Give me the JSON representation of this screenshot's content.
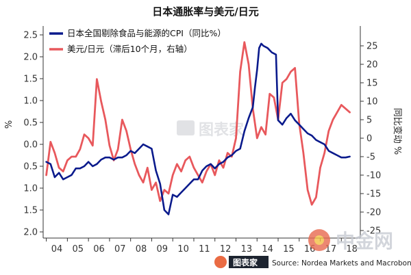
{
  "chart_data": {
    "type": "line",
    "title": "日本通胀率与美元/日元",
    "x_tick_labels": [
      "04",
      "05",
      "06",
      "07",
      "08",
      "09",
      "10",
      "11",
      "12",
      "13",
      "14",
      "15",
      "16",
      "17",
      "18"
    ],
    "x_range": [
      2003.85,
      2018.9
    ],
    "y_left": {
      "label": "%",
      "ticks": [
        "2.5",
        "2.0",
        "1.5",
        "1.0",
        "0.5",
        "0.0",
        "0.5",
        "1.0",
        "1.5",
        "2.0"
      ],
      "tick_values": [
        2.5,
        2.0,
        1.5,
        1.0,
        0.5,
        0.0,
        -0.5,
        -1.0,
        -1.5,
        -2.0
      ],
      "range": [
        -2.0,
        2.5
      ]
    },
    "y_right": {
      "label": "同比变动 %",
      "ticks": [
        "25",
        "20",
        "15",
        "10",
        "5",
        "0",
        "-5",
        "-10",
        "-15",
        "-20",
        "-25"
      ],
      "tick_values": [
        25,
        20,
        15,
        10,
        5,
        0,
        -5,
        -10,
        -15,
        -20,
        -25
      ],
      "range": [
        -25,
        27
      ]
    },
    "series": [
      {
        "name": "日本全国剔除食品与能源的CPI（同比%）",
        "color": "#0a1a8c",
        "axis": "left",
        "x": [
          2004.0,
          2004.2,
          2004.4,
          2004.6,
          2004.8,
          2005.0,
          2005.2,
          2005.4,
          2005.6,
          2005.8,
          2006.0,
          2006.2,
          2006.4,
          2006.6,
          2006.8,
          2007.0,
          2007.2,
          2007.4,
          2007.6,
          2007.8,
          2008.0,
          2008.2,
          2008.4,
          2008.6,
          2008.8,
          2009.0,
          2009.2,
          2009.4,
          2009.6,
          2009.8,
          2010.0,
          2010.2,
          2010.4,
          2010.6,
          2010.8,
          2011.0,
          2011.2,
          2011.4,
          2011.6,
          2011.8,
          2012.0,
          2012.2,
          2012.4,
          2012.6,
          2012.8,
          2013.0,
          2013.2,
          2013.4,
          2013.6,
          2013.8,
          2013.9,
          2014.0,
          2014.1,
          2014.2,
          2014.3,
          2014.5,
          2014.7,
          2014.9,
          2015.0,
          2015.2,
          2015.4,
          2015.6,
          2015.8,
          2016.0,
          2016.2,
          2016.4,
          2016.6,
          2016.8,
          2017.0,
          2017.2,
          2017.4,
          2017.6,
          2017.8,
          2018.0,
          2018.2,
          2018.4
        ],
        "values": [
          -0.4,
          -0.45,
          -0.75,
          -0.65,
          -0.8,
          -0.75,
          -0.7,
          -0.55,
          -0.55,
          -0.5,
          -0.4,
          -0.5,
          -0.45,
          -0.35,
          -0.3,
          -0.3,
          -0.35,
          -0.3,
          -0.3,
          -0.25,
          -0.15,
          -0.2,
          -0.1,
          0.0,
          -0.05,
          -0.1,
          -0.6,
          -0.9,
          -1.5,
          -1.6,
          -1.15,
          -1.2,
          -1.1,
          -1.0,
          -0.9,
          -0.8,
          -0.8,
          -0.6,
          -0.5,
          -0.45,
          -0.55,
          -0.45,
          -0.4,
          -0.3,
          -0.25,
          -0.15,
          -0.1,
          0.3,
          0.6,
          0.85,
          1.3,
          1.7,
          2.2,
          2.3,
          2.25,
          2.2,
          2.1,
          2.05,
          0.55,
          0.45,
          0.6,
          0.7,
          0.55,
          0.45,
          0.35,
          0.25,
          0.2,
          0.1,
          0.05,
          0.0,
          -0.15,
          -0.2,
          -0.25,
          -0.3,
          -0.3,
          -0.28
        ]
      },
      {
        "name": "美元/日元（滞后10个月，右轴）",
        "color": "#e8585c",
        "axis": "right",
        "x": [
          2004.0,
          2004.2,
          2004.4,
          2004.6,
          2004.8,
          2005.0,
          2005.2,
          2005.4,
          2005.6,
          2005.8,
          2006.0,
          2006.2,
          2006.4,
          2006.6,
          2006.8,
          2007.0,
          2007.2,
          2007.4,
          2007.6,
          2007.8,
          2008.0,
          2008.2,
          2008.4,
          2008.6,
          2008.8,
          2009.0,
          2009.2,
          2009.4,
          2009.6,
          2009.8,
          2010.0,
          2010.2,
          2010.4,
          2010.6,
          2010.8,
          2011.0,
          2011.2,
          2011.4,
          2011.6,
          2011.8,
          2012.0,
          2012.2,
          2012.4,
          2012.6,
          2012.8,
          2013.0,
          2013.2,
          2013.4,
          2013.6,
          2013.8,
          2014.0,
          2014.2,
          2014.4,
          2014.6,
          2014.8,
          2015.0,
          2015.2,
          2015.4,
          2015.6,
          2015.8,
          2016.0,
          2016.2,
          2016.4,
          2016.6,
          2016.8,
          2017.0,
          2017.2,
          2017.4,
          2017.6,
          2017.8,
          2018.0,
          2018.2,
          2018.4
        ],
        "values": [
          -10,
          -1,
          -4,
          -8,
          -9,
          -6,
          -5,
          -5,
          -3,
          1,
          0,
          -2,
          16,
          10,
          5,
          -2,
          -6,
          -3,
          5,
          2,
          -3,
          -7,
          -10,
          -12,
          -8,
          -14,
          -12,
          -17,
          -14,
          -15,
          -10,
          -7,
          -9,
          -6,
          -5,
          -8,
          -10,
          -12,
          -9,
          -7,
          -10,
          -6,
          -8,
          -4,
          -5,
          0,
          18,
          26,
          20,
          8,
          0,
          3,
          1,
          12,
          11,
          5,
          15,
          16,
          18,
          19,
          4,
          -4,
          -14,
          -18,
          -16,
          -8,
          -4,
          2,
          5,
          7,
          9,
          8,
          7
        ]
      }
    ],
    "legend": "top-left",
    "grid": false,
    "watermark": "图表家",
    "source": "Source: Nordea Markets and Macrobond",
    "footer_logo": "图表家",
    "corner_watermark": "中金网"
  }
}
